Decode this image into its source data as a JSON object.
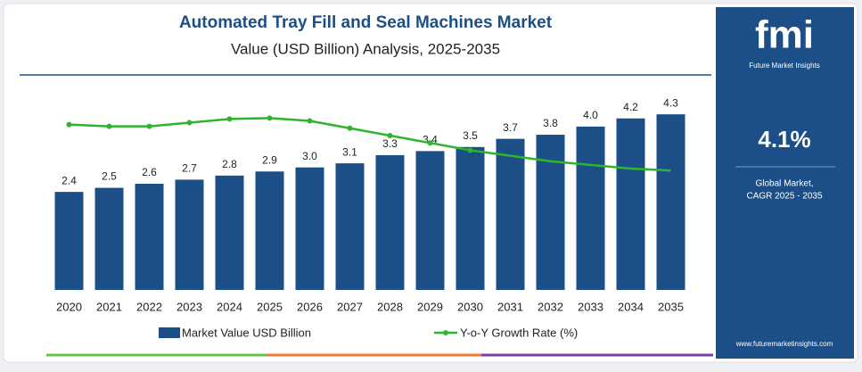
{
  "chart_data": {
    "type": "bar_line",
    "title": "Automated Tray Fill and Seal Machines Market",
    "subtitle": "Value (USD Billion) Analysis, 2025-2035",
    "categories": [
      "2020",
      "2021",
      "2022",
      "2023",
      "2024",
      "2025",
      "2026",
      "2027",
      "2028",
      "2029",
      "2030",
      "2031",
      "2032",
      "2033",
      "2034",
      "2035"
    ],
    "series": [
      {
        "name": "Market Value USD Billion",
        "color": "#1c4f87",
        "kind": "bar",
        "values": [
          2.4,
          2.5,
          2.6,
          2.7,
          2.8,
          2.9,
          3.0,
          3.1,
          3.3,
          3.4,
          3.5,
          3.7,
          3.8,
          4.0,
          4.2,
          4.3
        ],
        "value_labels": [
          "2.4",
          "2.5",
          "2.6",
          "2.7",
          "2.8",
          "2.9",
          "3.0",
          "3.1",
          "3.3",
          "3.4",
          "3.5",
          "3.7",
          "3.8",
          "4.0",
          "4.2",
          "4.3"
        ]
      },
      {
        "name": "Y-o-Y Growth Rate (%)",
        "color": "#2db52d",
        "kind": "line",
        "axis": "y2",
        "values": [
          4.0,
          3.9,
          3.9,
          4.1,
          4.3,
          4.35,
          4.2,
          3.8,
          3.4,
          3.0,
          2.6,
          2.3,
          2.0,
          1.8,
          1.6,
          1.5
        ]
      }
    ],
    "ylim": [
      0,
      4.5
    ],
    "y2lim": [
      -5,
      5
    ]
  },
  "sidebar": {
    "logo": "fmi",
    "brand": "Future Market Insights",
    "cagr": "4.1%",
    "caption_1": "Global Market,",
    "caption_2": "CAGR 2025 - 2035",
    "url": "www.futuremarketinsights.com"
  }
}
